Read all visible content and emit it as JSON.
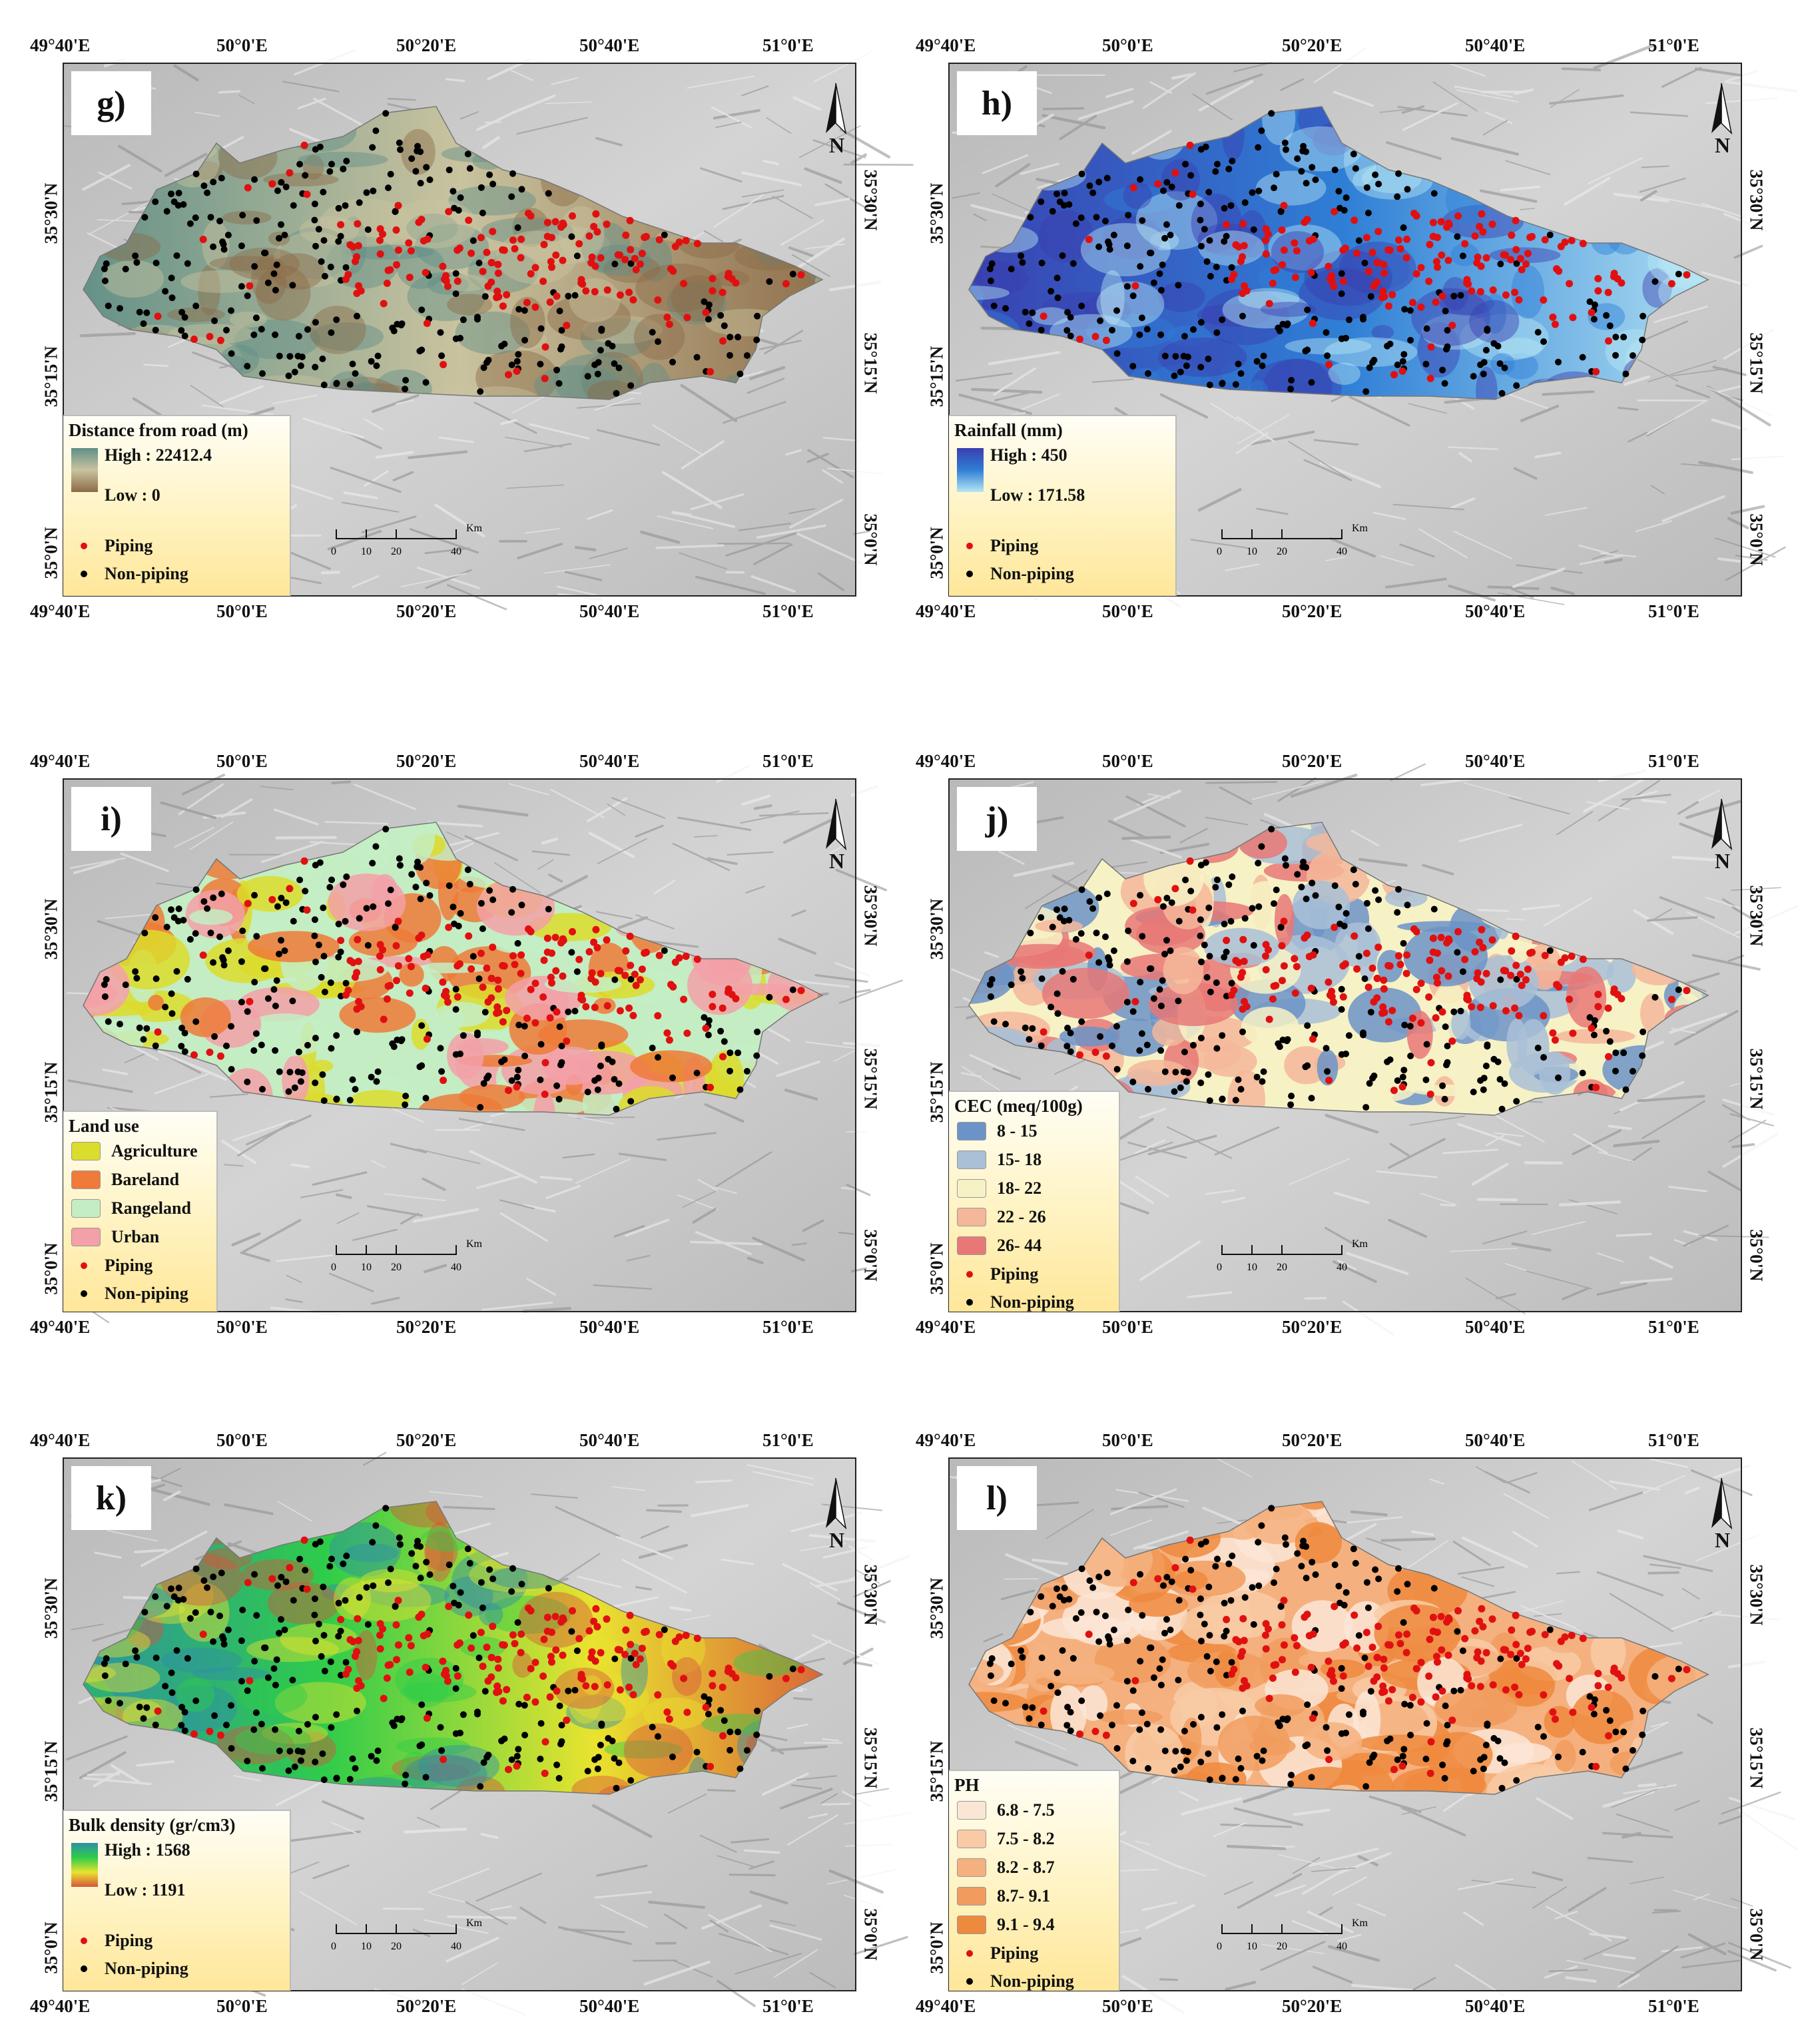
{
  "lon_labels": [
    "49°40'E",
    "50°0'E",
    "50°20'E",
    "50°40'E",
    "51°0'E"
  ],
  "lat_labels": [
    "35°30'N",
    "35°15'N",
    "35°0'N"
  ],
  "north_label": "N",
  "scale": {
    "ticks": [
      "0",
      "10",
      "20",
      "40"
    ],
    "unit": "Km"
  },
  "points_legend": {
    "piping": "Piping",
    "non_piping": "Non-piping"
  },
  "colors": {
    "piping": "#e01010",
    "non_piping": "#000000"
  },
  "panels": [
    {
      "letter": "g)",
      "legend_title": "Distance from road (m)",
      "legend_type": "gradient",
      "high": "High : 22412.4",
      "low": "Low : 0",
      "gradient_colors": [
        "#5f8f87",
        "#c9c39f",
        "#8c6a47"
      ]
    },
    {
      "letter": "h)",
      "legend_title": "Rainfall (mm)",
      "legend_type": "gradient",
      "high": "High : 450",
      "low": "Low : 171.58",
      "gradient_colors": [
        "#3a3fb0",
        "#2f7fd6",
        "#b7e6f3"
      ]
    },
    {
      "letter": "i)",
      "legend_title": "Land use",
      "legend_type": "classes",
      "classes": [
        {
          "label": "Agriculture",
          "color": "#dcdc2c"
        },
        {
          "label": "Bareland",
          "color": "#ef7a3a"
        },
        {
          "label": "Rangeland",
          "color": "#c4edc4"
        },
        {
          "label": "Urban",
          "color": "#f3a0a8"
        }
      ]
    },
    {
      "letter": "j)",
      "legend_title": "CEC (meq/100g)",
      "legend_type": "classes",
      "classes": [
        {
          "label": "8 - 15",
          "color": "#6c93c7"
        },
        {
          "label": "15- 18",
          "color": "#a9c0d6"
        },
        {
          "label": "18- 22",
          "color": "#f7f2c6"
        },
        {
          "label": "22 - 26",
          "color": "#f4b79a"
        },
        {
          "label": "26- 44",
          "color": "#e87876"
        }
      ]
    },
    {
      "letter": "k)",
      "legend_title": "Bulk density (gr/cm3)",
      "legend_type": "gradient",
      "high": "High : 1568",
      "low": "Low : 1191",
      "gradient_colors": [
        "#2f8fa6",
        "#2fcc4a",
        "#e9e32f",
        "#d8553a"
      ]
    },
    {
      "letter": "l)",
      "legend_title": "PH",
      "legend_type": "classes",
      "classes": [
        {
          "label": "6.8 - 7.5",
          "color": "#fbe6d6"
        },
        {
          "label": "7.5 - 8.2",
          "color": "#f8cba6"
        },
        {
          "label": "8.2 - 8.7",
          "color": "#f4b17f"
        },
        {
          "label": "8.7- 9.1",
          "color": "#f19c5e"
        },
        {
          "label": "9.1 - 9.4",
          "color": "#ee8a3e"
        }
      ]
    }
  ]
}
